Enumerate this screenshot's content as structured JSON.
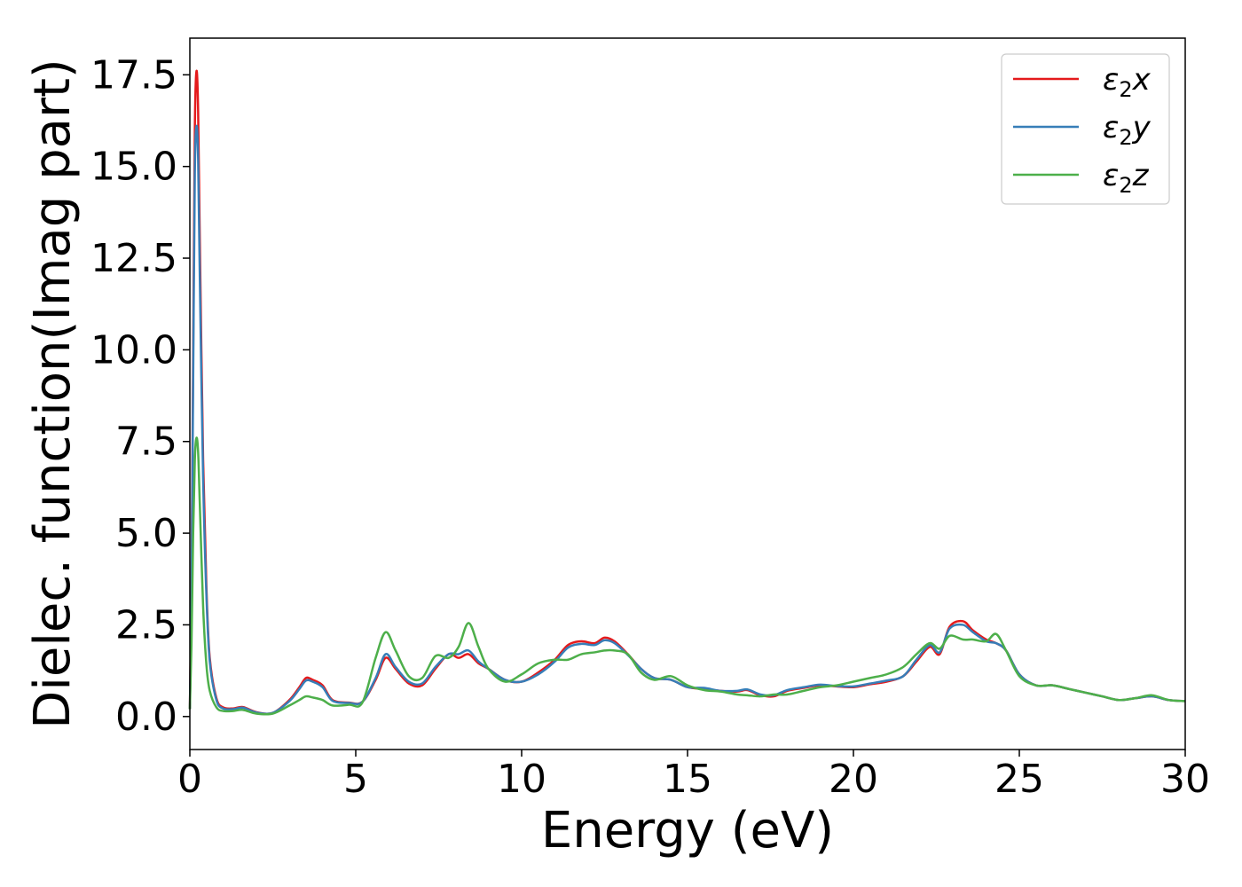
{
  "chart_data": {
    "type": "line",
    "title": "",
    "xlabel": "Energy (eV)",
    "ylabel": "Dielec. function(Imag part)",
    "xlim": [
      0,
      30
    ],
    "ylim": [
      -0.9,
      18.5
    ],
    "xticks": [
      0,
      5,
      10,
      15,
      20,
      25,
      30
    ],
    "xtick_labels": [
      "0",
      "5",
      "10",
      "15",
      "20",
      "25",
      "30"
    ],
    "yticks": [
      0.0,
      2.5,
      5.0,
      7.5,
      10.0,
      12.5,
      15.0,
      17.5
    ],
    "ytick_labels": [
      "0.0",
      "2.5",
      "5.0",
      "7.5",
      "10.0",
      "12.5",
      "15.0",
      "17.5"
    ],
    "grid": false,
    "legend_position": "top-right",
    "series": [
      {
        "name": "ε2x",
        "legend_main": "ε",
        "legend_sub": "2",
        "legend_suffix": "x",
        "color": "#e41a1c",
        "x": [
          0,
          0.05,
          0.1,
          0.15,
          0.2,
          0.25,
          0.3,
          0.4,
          0.5,
          0.6,
          0.8,
          1.0,
          1.3,
          1.6,
          2.0,
          2.5,
          3.0,
          3.3,
          3.5,
          3.7,
          4.0,
          4.3,
          4.8,
          5.2,
          5.6,
          5.9,
          6.2,
          6.6,
          7.0,
          7.4,
          7.8,
          8.1,
          8.4,
          8.7,
          9.0,
          9.5,
          10.0,
          10.5,
          11.0,
          11.4,
          11.8,
          12.2,
          12.5,
          12.8,
          13.2,
          13.6,
          14.0,
          14.5,
          15.0,
          15.5,
          16.0,
          16.5,
          16.8,
          17.2,
          17.6,
          18.0,
          18.5,
          19.0,
          19.5,
          20.0,
          20.5,
          21.0,
          21.5,
          21.9,
          22.3,
          22.6,
          22.9,
          23.3,
          23.6,
          24.0,
          24.3,
          24.6,
          25.0,
          25.5,
          26.0,
          26.5,
          27.0,
          27.5,
          28.0,
          28.5,
          29.0,
          29.5,
          30.0
        ],
        "y": [
          0.2,
          3.5,
          10.0,
          16.0,
          17.6,
          16.5,
          13.0,
          7.0,
          3.5,
          1.6,
          0.5,
          0.25,
          0.22,
          0.26,
          0.12,
          0.1,
          0.45,
          0.8,
          1.05,
          1.0,
          0.85,
          0.45,
          0.38,
          0.4,
          1.0,
          1.6,
          1.3,
          0.9,
          0.85,
          1.3,
          1.7,
          1.6,
          1.7,
          1.45,
          1.3,
          1.0,
          0.95,
          1.2,
          1.55,
          1.95,
          2.05,
          2.0,
          2.15,
          2.05,
          1.7,
          1.3,
          1.05,
          1.0,
          0.8,
          0.75,
          0.7,
          0.68,
          0.72,
          0.58,
          0.55,
          0.7,
          0.78,
          0.85,
          0.82,
          0.8,
          0.88,
          0.95,
          1.1,
          1.5,
          1.9,
          1.7,
          2.45,
          2.6,
          2.35,
          2.1,
          2.0,
          1.8,
          1.15,
          0.85,
          0.85,
          0.75,
          0.65,
          0.55,
          0.45,
          0.5,
          0.55,
          0.45,
          0.42
        ]
      },
      {
        "name": "ε2y",
        "legend_main": "ε",
        "legend_sub": "2",
        "legend_suffix": "y",
        "color": "#377eb8",
        "x": [
          0,
          0.05,
          0.1,
          0.15,
          0.2,
          0.25,
          0.3,
          0.4,
          0.5,
          0.6,
          0.8,
          1.0,
          1.3,
          1.6,
          2.0,
          2.5,
          3.0,
          3.3,
          3.5,
          3.7,
          4.0,
          4.3,
          4.8,
          5.2,
          5.6,
          5.9,
          6.2,
          6.6,
          7.0,
          7.4,
          7.8,
          8.1,
          8.4,
          8.7,
          9.0,
          9.5,
          10.0,
          10.5,
          11.0,
          11.4,
          11.8,
          12.2,
          12.5,
          12.8,
          13.2,
          13.6,
          14.0,
          14.5,
          15.0,
          15.5,
          16.0,
          16.5,
          16.8,
          17.2,
          17.6,
          18.0,
          18.5,
          19.0,
          19.5,
          20.0,
          20.5,
          21.0,
          21.5,
          21.9,
          22.3,
          22.6,
          22.9,
          23.3,
          23.6,
          24.0,
          24.3,
          24.6,
          25.0,
          25.5,
          26.0,
          26.5,
          27.0,
          27.5,
          28.0,
          28.5,
          29.0,
          29.5,
          30.0
        ],
        "y": [
          0.2,
          3.2,
          9.2,
          14.8,
          16.1,
          15.2,
          12.0,
          6.5,
          3.3,
          1.5,
          0.45,
          0.22,
          0.2,
          0.24,
          0.11,
          0.1,
          0.42,
          0.75,
          0.98,
          0.95,
          0.8,
          0.43,
          0.37,
          0.4,
          1.05,
          1.7,
          1.35,
          0.95,
          0.9,
          1.35,
          1.7,
          1.7,
          1.8,
          1.5,
          1.3,
          1.0,
          0.95,
          1.15,
          1.5,
          1.88,
          1.98,
          1.95,
          2.08,
          2.0,
          1.68,
          1.3,
          1.05,
          1.0,
          0.8,
          0.78,
          0.7,
          0.7,
          0.74,
          0.6,
          0.58,
          0.72,
          0.8,
          0.87,
          0.83,
          0.82,
          0.9,
          0.98,
          1.1,
          1.55,
          1.95,
          1.75,
          2.4,
          2.5,
          2.3,
          2.05,
          2.0,
          1.8,
          1.15,
          0.85,
          0.85,
          0.75,
          0.65,
          0.55,
          0.45,
          0.5,
          0.55,
          0.45,
          0.42
        ]
      },
      {
        "name": "ε2z",
        "legend_main": "ε",
        "legend_sub": "2",
        "legend_suffix": "z",
        "color": "#4daf4a",
        "x": [
          0,
          0.05,
          0.1,
          0.15,
          0.2,
          0.25,
          0.3,
          0.4,
          0.5,
          0.6,
          0.8,
          1.0,
          1.3,
          1.6,
          2.0,
          2.5,
          3.0,
          3.3,
          3.5,
          3.7,
          4.0,
          4.3,
          4.8,
          5.2,
          5.6,
          5.9,
          6.2,
          6.6,
          7.0,
          7.4,
          7.8,
          8.1,
          8.4,
          8.7,
          9.0,
          9.5,
          10.0,
          10.5,
          11.0,
          11.4,
          11.8,
          12.2,
          12.5,
          12.8,
          13.2,
          13.6,
          14.0,
          14.5,
          15.0,
          15.5,
          16.0,
          16.5,
          16.8,
          17.2,
          17.6,
          18.0,
          18.5,
          19.0,
          19.5,
          20.0,
          20.5,
          21.0,
          21.5,
          21.9,
          22.3,
          22.6,
          22.9,
          23.3,
          23.6,
          24.0,
          24.3,
          24.6,
          25.0,
          25.5,
          26.0,
          26.5,
          27.0,
          27.5,
          28.0,
          28.5,
          29.0,
          29.5,
          30.0
        ],
        "y": [
          0.2,
          2.0,
          5.0,
          7.0,
          7.6,
          7.2,
          5.8,
          3.0,
          1.4,
          0.7,
          0.25,
          0.15,
          0.15,
          0.18,
          0.08,
          0.08,
          0.3,
          0.45,
          0.55,
          0.52,
          0.45,
          0.3,
          0.32,
          0.38,
          1.6,
          2.3,
          1.8,
          1.1,
          1.05,
          1.65,
          1.6,
          1.9,
          2.55,
          1.9,
          1.3,
          0.95,
          1.15,
          1.45,
          1.55,
          1.55,
          1.7,
          1.75,
          1.8,
          1.8,
          1.7,
          1.2,
          1.0,
          1.1,
          0.85,
          0.72,
          0.68,
          0.6,
          0.58,
          0.55,
          0.6,
          0.6,
          0.7,
          0.8,
          0.85,
          0.95,
          1.05,
          1.15,
          1.35,
          1.7,
          2.0,
          1.85,
          2.2,
          2.1,
          2.1,
          2.05,
          2.25,
          1.8,
          1.1,
          0.85,
          0.85,
          0.75,
          0.65,
          0.55,
          0.45,
          0.5,
          0.58,
          0.45,
          0.42
        ]
      }
    ]
  }
}
